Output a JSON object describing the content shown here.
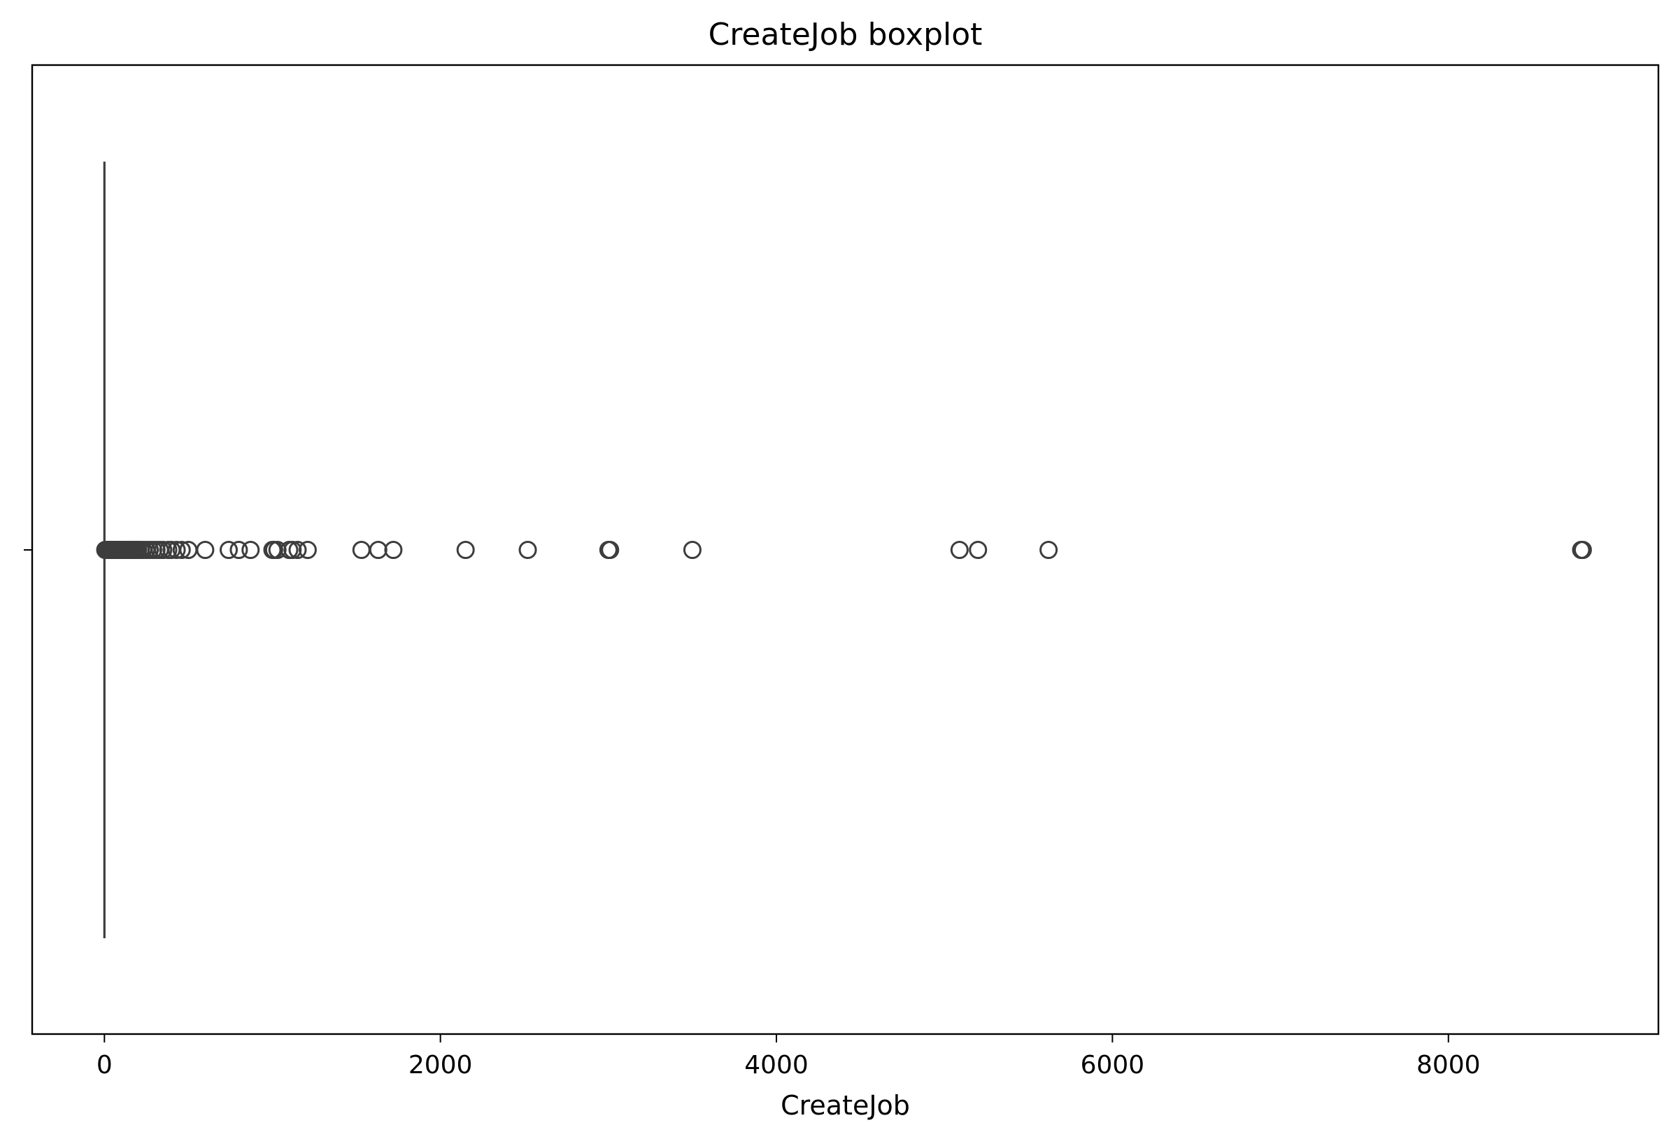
{
  "chart_data": {
    "type": "boxplot",
    "orientation": "horizontal",
    "title": "CreateJob boxplot",
    "xlabel": "CreateJob",
    "ylabel": "",
    "xlim": [
      -430,
      9250
    ],
    "xticks": [
      0,
      2000,
      4000,
      6000,
      8000
    ],
    "xtick_labels": [
      "0",
      "2000",
      "4000",
      "6000",
      "8000"
    ],
    "grid": false,
    "box": {
      "min": 0,
      "q1": 0,
      "median": 0,
      "q3": 0,
      "max": 0
    },
    "outliers": [
      5,
      10,
      15,
      20,
      25,
      30,
      35,
      40,
      45,
      50,
      55,
      60,
      65,
      70,
      75,
      80,
      85,
      90,
      95,
      100,
      110,
      120,
      130,
      140,
      150,
      160,
      170,
      180,
      190,
      200,
      215,
      230,
      250,
      270,
      290,
      310,
      330,
      350,
      380,
      400,
      430,
      460,
      500,
      600,
      740,
      800,
      870,
      1000,
      1010,
      1030,
      1100,
      1120,
      1150,
      1210,
      1530,
      1630,
      1720,
      2150,
      2520,
      3000,
      3010,
      3500,
      5090,
      5200,
      5620,
      8790,
      8800
    ],
    "colors": {
      "box_line": "#3d3d3d",
      "axis": "#000000",
      "background": "#ffffff"
    }
  }
}
